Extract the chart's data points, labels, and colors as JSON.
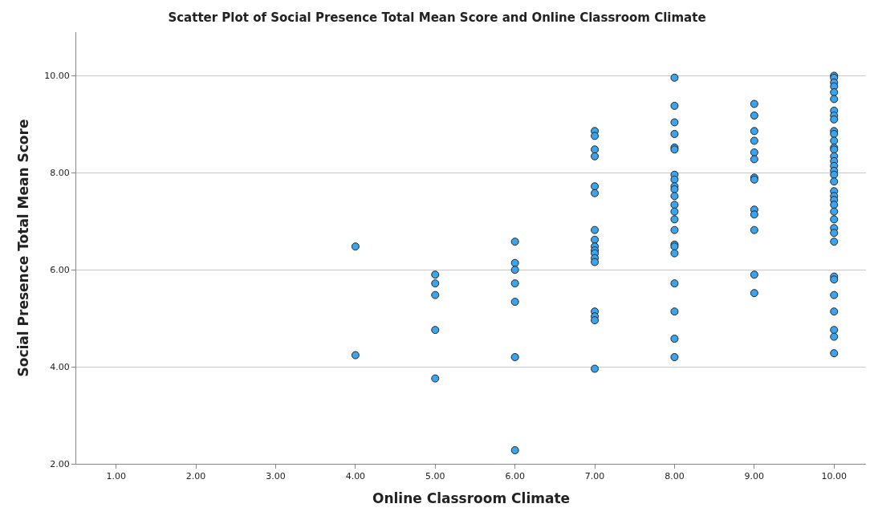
{
  "chart_data": {
    "type": "scatter",
    "title": "Scatter Plot of Social Presence Total Mean Score and Online Classroom Climate",
    "xlabel": "Online Classroom Climate",
    "ylabel": "Social Presence Total Mean Score",
    "series": [
      {
        "color": "#3aa5ee",
        "x": [
          4,
          4,
          5,
          5,
          5,
          5,
          5,
          6,
          6,
          6,
          6,
          6,
          6,
          6,
          7,
          7,
          7,
          7,
          7,
          7,
          7,
          7,
          7,
          7,
          7,
          7,
          7,
          7,
          7,
          7,
          7,
          8,
          8,
          8,
          8,
          8,
          8,
          8,
          8,
          8,
          8,
          8,
          8,
          8,
          8,
          8,
          8,
          8,
          8,
          8,
          8,
          8,
          8,
          9,
          9,
          9,
          9,
          9,
          9,
          9,
          9,
          9,
          9,
          9,
          9,
          9,
          10,
          10,
          10,
          10,
          10,
          10,
          10,
          10,
          10,
          10,
          10,
          10,
          10,
          10,
          10,
          10,
          10,
          10,
          10,
          10,
          10,
          10,
          10,
          10,
          10,
          10,
          10,
          10,
          10,
          10,
          10,
          10,
          10,
          10,
          10,
          10
        ],
        "values": [
          6.48,
          4.24,
          5.9,
          5.72,
          5.48,
          4.76,
          3.76,
          6.58,
          6.14,
          6.0,
          5.72,
          5.34,
          4.2,
          2.28,
          8.86,
          8.76,
          8.48,
          8.34,
          7.72,
          7.58,
          6.82,
          6.62,
          6.48,
          6.4,
          6.34,
          6.24,
          6.16,
          5.14,
          5.04,
          4.96,
          3.96,
          9.96,
          9.38,
          9.04,
          8.8,
          8.52,
          8.48,
          7.96,
          7.86,
          7.72,
          7.66,
          7.52,
          7.34,
          7.2,
          7.04,
          6.82,
          6.52,
          6.48,
          6.34,
          5.72,
          5.14,
          4.58,
          4.2,
          9.42,
          9.18,
          8.86,
          8.66,
          8.42,
          8.28,
          7.9,
          7.86,
          7.24,
          7.14,
          6.82,
          5.9,
          5.52,
          10.0,
          9.96,
          9.86,
          9.78,
          9.66,
          9.52,
          9.28,
          9.18,
          9.1,
          8.86,
          8.8,
          8.66,
          8.52,
          8.48,
          8.34,
          8.24,
          8.14,
          8.04,
          7.96,
          7.82,
          7.62,
          7.52,
          7.44,
          7.34,
          7.2,
          7.04,
          6.86,
          6.76,
          6.58,
          5.86,
          5.8,
          5.48,
          5.14,
          4.76,
          4.62,
          4.28
        ]
      }
    ],
    "xlim": [
      0.5,
      10.4
    ],
    "ylim": [
      2,
      10.9
    ],
    "xticks": [
      {
        "value": 1,
        "label": "1.00"
      },
      {
        "value": 2,
        "label": "2.00"
      },
      {
        "value": 3,
        "label": "3.00"
      },
      {
        "value": 4,
        "label": "4.00"
      },
      {
        "value": 5,
        "label": "5.00"
      },
      {
        "value": 6,
        "label": "6.00"
      },
      {
        "value": 7,
        "label": "7.00"
      },
      {
        "value": 8,
        "label": "8.00"
      },
      {
        "value": 9,
        "label": "9.00"
      },
      {
        "value": 10,
        "label": "10.00"
      }
    ],
    "yticks": [
      {
        "value": 2,
        "label": "2.00"
      },
      {
        "value": 4,
        "label": "4.00"
      },
      {
        "value": 6,
        "label": "6.00"
      },
      {
        "value": 8,
        "label": "8.00"
      },
      {
        "value": 10,
        "label": "10.00"
      }
    ],
    "grid": "y",
    "marker": "circle"
  }
}
